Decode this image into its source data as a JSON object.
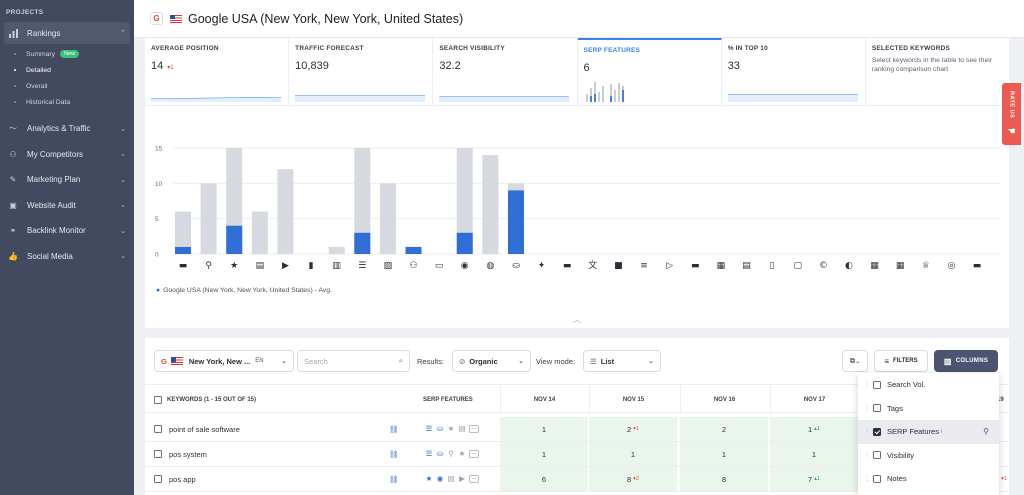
{
  "sidebar": {
    "heading": "PROJECTS",
    "rankings": {
      "label": "Rankings"
    },
    "sub_items": [
      {
        "label": "Summary",
        "badge": "New"
      },
      {
        "label": "Detailed"
      },
      {
        "label": "Overall"
      },
      {
        "label": "Historical Data"
      }
    ],
    "items": [
      {
        "label": "Analytics & Traffic",
        "icon": "analytics-icon"
      },
      {
        "label": "My Competitors",
        "icon": "competitors-icon"
      },
      {
        "label": "Marketing Plan",
        "icon": "marketing-plan-icon"
      },
      {
        "label": "Website Audit",
        "icon": "website-audit-icon"
      },
      {
        "label": "Backlink Monitor",
        "icon": "backlink-icon"
      },
      {
        "label": "Social Media",
        "icon": "social-media-icon"
      }
    ]
  },
  "header": {
    "engine_icon": "G",
    "title": "Google USA (New York, New York, United States)"
  },
  "metrics": [
    {
      "label": "AVERAGE POSITION",
      "value": "14",
      "delta": "▾1"
    },
    {
      "label": "TRAFFIC FORECAST",
      "value": "10,839"
    },
    {
      "label": "SEARCH VISIBILITY",
      "value": "32.2"
    },
    {
      "label": "SERP FEATURES",
      "value": "6"
    },
    {
      "label": "% IN TOP 10",
      "value": "33"
    },
    {
      "label": "SELECTED KEYWORDS",
      "desc": "Select keywords in the table to see their ranking comparison chart"
    }
  ],
  "chart_data": {
    "type": "bar",
    "ylim": [
      0,
      15
    ],
    "yticks": [
      "15",
      "10",
      "5",
      "0"
    ],
    "categories": [
      "featured-snippet",
      "local-pack",
      "reviews",
      "sitelinks",
      "video",
      "carousel",
      "image-pack-a",
      "people-also-ask",
      "images",
      "knowledge-graph",
      "shopping",
      "top-stories",
      "news",
      "shopping-ads",
      "twitter",
      "hotels",
      "translate",
      "jobs",
      "flights",
      "related",
      "video-results",
      "recipes",
      "calendar",
      "books",
      "sponsored",
      "copyright",
      "find-results",
      "apps",
      "events",
      "awards",
      "podcast",
      "app-pack"
    ],
    "series": [
      {
        "values": [
          6,
          10,
          15,
          6,
          12,
          0,
          1,
          15,
          10,
          1,
          0,
          15,
          14,
          10,
          0,
          0,
          0,
          0,
          0,
          0,
          0,
          0,
          0,
          0,
          0,
          0,
          0,
          0,
          0,
          0,
          0,
          0
        ]
      },
      {
        "values": [
          1,
          0,
          4,
          0,
          0,
          0,
          0,
          3,
          0,
          1,
          0,
          3,
          0,
          9,
          0,
          0,
          0,
          0,
          0,
          0,
          0,
          0,
          0,
          0,
          0,
          0,
          0,
          0,
          0,
          0,
          0,
          0
        ]
      }
    ],
    "legend": "Google USA (New York, New York, United States) - Avg.",
    "colors": {
      "total": "#d7d9e1",
      "with_feature": "#2f6fd3"
    }
  },
  "toolbar": {
    "location": "New York, New ...",
    "lang": "EN",
    "search_placeholder": "Search",
    "results_label": "Results:",
    "results_value": "Organic",
    "view_label": "View mode:",
    "view_value": "List",
    "filters_label": "FILTERS",
    "columns_label": "COLUMNS"
  },
  "table": {
    "kw_header": "KEYWORDS (1 - 15 OUT OF 15)",
    "serp_header": "SERP FEATURES",
    "dates": [
      "NOV 14",
      "NOV 15",
      "NOV 16",
      "NOV 17",
      "19"
    ],
    "rows": [
      {
        "keyword": "point of sale software",
        "vals": [
          "1",
          "2",
          "2",
          "1"
        ],
        "deltas": [
          "",
          "▾1",
          "",
          "▴1"
        ]
      },
      {
        "keyword": "pos system",
        "vals": [
          "1",
          "1",
          "1",
          "1"
        ],
        "deltas": [
          "",
          "",
          "",
          ""
        ]
      },
      {
        "keyword": "pos app",
        "vals": [
          "6",
          "8",
          "8",
          "7"
        ],
        "deltas": [
          "",
          "▾2",
          "",
          "▴1"
        ],
        "tail": "▾1"
      }
    ]
  },
  "columns_menu": [
    {
      "label": "Search Vol.",
      "checked": false
    },
    {
      "label": "Tags",
      "checked": false
    },
    {
      "label": "SERP Features",
      "checked": true,
      "mark": "i"
    },
    {
      "label": "Visibility",
      "checked": false
    },
    {
      "label": "Notes",
      "checked": false
    }
  ],
  "rate_tab": "RATE US"
}
